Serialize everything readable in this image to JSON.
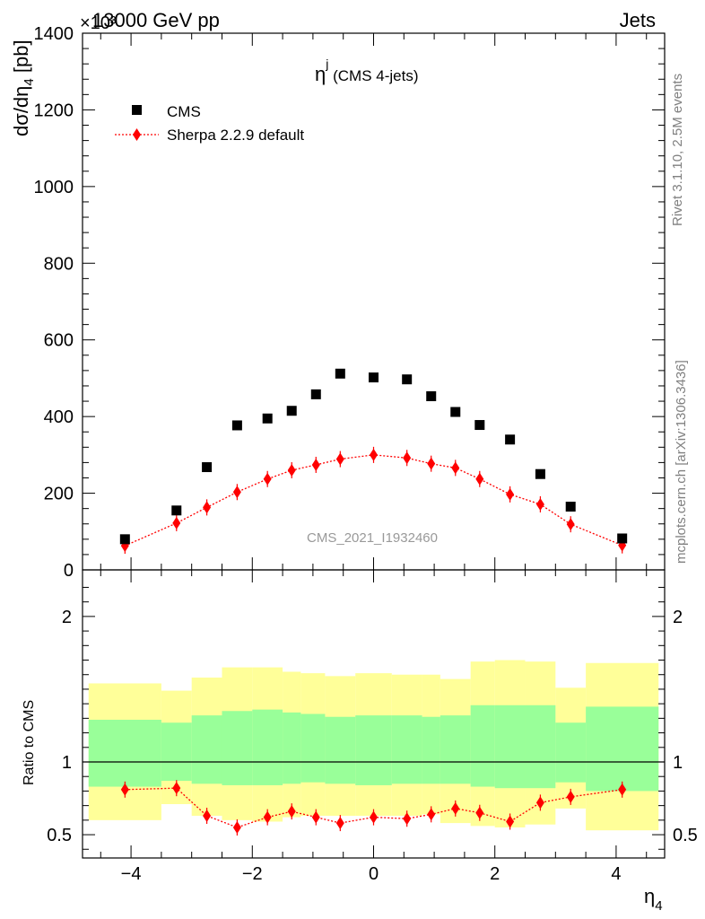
{
  "header": {
    "left": "13000 GeV pp",
    "right": "Jets",
    "exponent": "×10³",
    "side_top": "Rivet 3.1.10,  2.5M events",
    "side_bottom": "mcplots.cern.ch [arXiv:1306.3436]",
    "watermark": "CMS_2021_I1932460"
  },
  "chart_data": [
    {
      "type": "scatter",
      "title": "η",
      "title_sup": "j",
      "title_sub": " (CMS 4-jets)",
      "ylabel_main": "dσ/dη",
      "ylabel_sub": "4",
      "ylabel_unit": " [pb]",
      "xlabel_main": "η",
      "xlabel_sub": "4",
      "xlim": [
        -4.8,
        4.8
      ],
      "ylim": [
        0,
        1400
      ],
      "y_scale_factor": 1000,
      "yticks": [
        0,
        200,
        400,
        600,
        800,
        1000,
        1200,
        1400
      ],
      "legend_position": "top-left",
      "series": [
        {
          "name": "CMS",
          "marker": "square",
          "color": "#000000",
          "x": [
            -4.1,
            -3.25,
            -2.75,
            -2.25,
            -1.75,
            -1.35,
            -0.95,
            -0.55,
            0.0,
            0.55,
            0.95,
            1.35,
            1.75,
            2.25,
            2.75,
            3.25,
            4.1
          ],
          "y": [
            80,
            155,
            268,
            377,
            395,
            415,
            458,
            512,
            502,
            497,
            453,
            412,
            378,
            340,
            250,
            165,
            82
          ]
        },
        {
          "name": "Sherpa 2.2.9 default",
          "marker": "diamond",
          "line": "dotted",
          "color": "#ff0000",
          "x": [
            -4.1,
            -3.25,
            -2.75,
            -2.25,
            -1.75,
            -1.35,
            -0.95,
            -0.55,
            0.0,
            0.55,
            0.95,
            1.35,
            1.75,
            2.25,
            2.75,
            3.25,
            4.1
          ],
          "y": [
            63,
            122,
            163,
            203,
            237,
            260,
            274,
            289,
            300,
            292,
            277,
            266,
            237,
            197,
            171,
            119,
            64
          ]
        }
      ]
    },
    {
      "type": "scatter",
      "ylabel": "Ratio to CMS",
      "xlim": [
        -4.8,
        4.8
      ],
      "ylim": [
        0.34,
        2.32
      ],
      "yticks": [
        0.5,
        1,
        2
      ],
      "xticks": [
        -4,
        -2,
        0,
        2,
        4
      ],
      "bin_edges": [
        -4.7,
        -3.5,
        -3.0,
        -2.5,
        -2.0,
        -1.5,
        -1.2,
        -0.8,
        -0.3,
        0.3,
        0.8,
        1.1,
        1.6,
        2.0,
        2.5,
        3.0,
        3.5,
        4.7
      ],
      "band_outer": {
        "color": "#ffff99",
        "low": [
          0.6,
          0.71,
          0.63,
          0.6,
          0.59,
          0.62,
          0.63,
          0.63,
          0.63,
          0.63,
          0.64,
          0.58,
          0.56,
          0.55,
          0.57,
          0.68,
          0.53
        ],
        "high": [
          1.54,
          1.49,
          1.58,
          1.65,
          1.65,
          1.62,
          1.61,
          1.59,
          1.61,
          1.6,
          1.6,
          1.57,
          1.69,
          1.7,
          1.69,
          1.51,
          1.68
        ]
      },
      "band_inner": {
        "color": "#99ff99",
        "low": [
          0.83,
          0.87,
          0.85,
          0.84,
          0.84,
          0.85,
          0.86,
          0.85,
          0.84,
          0.85,
          0.85,
          0.85,
          0.83,
          0.82,
          0.82,
          0.86,
          0.8
        ],
        "high": [
          1.29,
          1.27,
          1.32,
          1.35,
          1.36,
          1.34,
          1.33,
          1.31,
          1.32,
          1.32,
          1.31,
          1.32,
          1.39,
          1.39,
          1.39,
          1.27,
          1.38
        ]
      },
      "series": [
        {
          "name": "Sherpa 2.2.9 default",
          "color": "#ff0000",
          "x": [
            -4.1,
            -3.25,
            -2.75,
            -2.25,
            -1.75,
            -1.35,
            -0.95,
            -0.55,
            0.0,
            0.55,
            0.95,
            1.35,
            1.75,
            2.25,
            2.75,
            3.25,
            4.1
          ],
          "y": [
            0.81,
            0.82,
            0.63,
            0.55,
            0.62,
            0.66,
            0.62,
            0.58,
            0.62,
            0.61,
            0.64,
            0.68,
            0.65,
            0.59,
            0.72,
            0.76,
            0.81
          ]
        }
      ]
    }
  ]
}
